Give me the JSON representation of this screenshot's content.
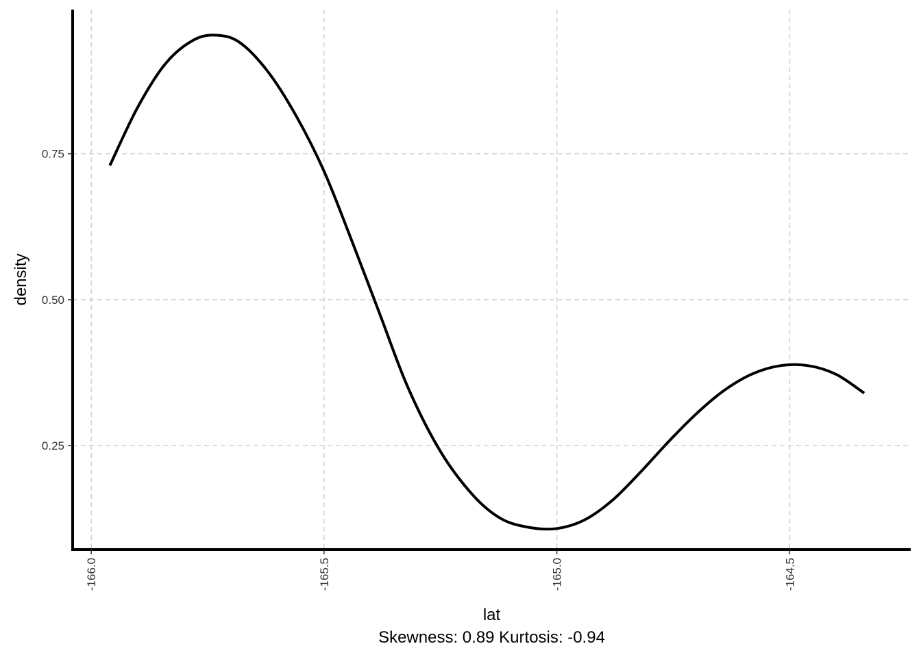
{
  "chart_data": {
    "type": "line",
    "xlabel": "lat",
    "ylabel": "density",
    "caption": "Skewness: 0.89 Kurtosis: -0.94",
    "xlim": [
      -166.04,
      -164.24
    ],
    "ylim": [
      0.072,
      0.997
    ],
    "x_ticks": [
      {
        "value": -166.0,
        "label": "-166.0"
      },
      {
        "value": -165.5,
        "label": "-165.5"
      },
      {
        "value": -165.0,
        "label": "-165.0"
      },
      {
        "value": -164.5,
        "label": "-164.5"
      }
    ],
    "y_ticks": [
      {
        "value": 0.25,
        "label": "0.25"
      },
      {
        "value": 0.5,
        "label": "0.50"
      },
      {
        "value": 0.75,
        "label": "0.75"
      }
    ],
    "grid": true,
    "grid_style": "dashed",
    "line_color": "#000000",
    "series": [
      {
        "x": [
          -165.96,
          -165.9,
          -165.84,
          -165.78,
          -165.73,
          -165.68,
          -165.62,
          -165.56,
          -165.5,
          -165.44,
          -165.38,
          -165.32,
          -165.25,
          -165.18,
          -165.12,
          -165.06,
          -165.0,
          -164.94,
          -164.88,
          -164.82,
          -164.76,
          -164.7,
          -164.64,
          -164.58,
          -164.52,
          -164.46,
          -164.4,
          -164.34
        ],
        "y": [
          0.73,
          0.83,
          0.905,
          0.945,
          0.953,
          0.94,
          0.89,
          0.815,
          0.72,
          0.6,
          0.475,
          0.35,
          0.24,
          0.165,
          0.125,
          0.11,
          0.108,
          0.123,
          0.157,
          0.205,
          0.257,
          0.305,
          0.345,
          0.373,
          0.387,
          0.387,
          0.372,
          0.34
        ]
      }
    ]
  }
}
